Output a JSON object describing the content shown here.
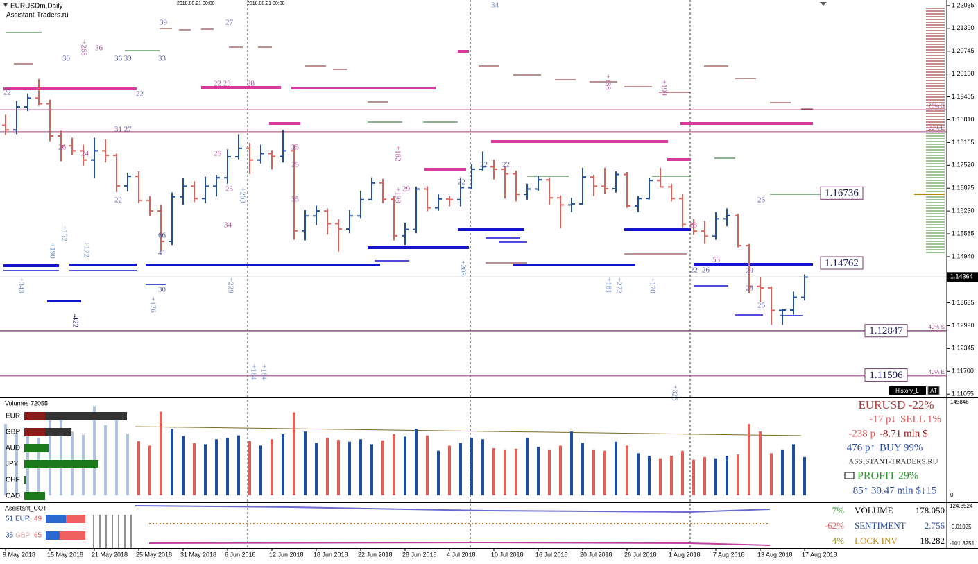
{
  "header": {
    "symbol": "EURUSDm,Daily",
    "site": "Assistant-Traders.ru",
    "timestamps": [
      "2018.08.21 00:00",
      "2018.08.21 00:00"
    ],
    "history": "History_L",
    "badge": "AT"
  },
  "chart_data": [
    {
      "type": "ohlc",
      "ylim": [
        1.1098,
        1.2219
      ],
      "yticks": [
        1.22035,
        {
          "value": 1.2139,
          "label": "1.21390"
        },
        1.20745,
        {
          "value": 1.201,
          "label": "1.20100"
        },
        1.19455,
        {
          "value": 1.1881,
          "label": "1.18810"
        },
        1.18165,
        {
          "value": 1.1752,
          "label": "1.17520"
        },
        1.16875,
        {
          "value": 1.1623,
          "label": "1.16230"
        },
        1.15585,
        {
          "value": 1.1494,
          "label": "1.14940"
        },
        1.13635,
        {
          "value": 1.1299,
          "label": "1.12990"
        },
        1.12345,
        {
          "value": 1.117,
          "label": "1.11700"
        },
        1.11055
      ],
      "current_price": 1.14364,
      "levels": [
        1.16736,
        1.14762,
        1.12847,
        1.11596
      ],
      "zones": [
        {
          "label": "20% S",
          "value": 1.1909
        },
        {
          "label": "20% E",
          "value": 1.1847
        },
        {
          "label": "40% S",
          "value": 1.1284
        },
        {
          "label": "40% E",
          "value": 1.1157
        }
      ],
      "up_color": "#1f4e9c",
      "down_color": "#e0605a",
      "categories": [
        "9 May 2018",
        null,
        null,
        null,
        "15 May 2018",
        null,
        null,
        null,
        "21 May 2018",
        null,
        null,
        null,
        "25 May 2018",
        null,
        null,
        null,
        "31 May 2018",
        null,
        null,
        null,
        "6 Jun 2018",
        null,
        null,
        null,
        "12 Jun 2018",
        null,
        null,
        null,
        "18 Jun 2018",
        null,
        null,
        null,
        "22 Jun 2018",
        null,
        null,
        null,
        "28 Jun 2018",
        null,
        null,
        null,
        "4 Jul 2018",
        null,
        null,
        null,
        "10 Jul 2018",
        null,
        null,
        null,
        "16 Jul 2018",
        null,
        null,
        null,
        "20 Jul 2018",
        null,
        null,
        null,
        "26 Jul 2018",
        null,
        null,
        null,
        "1 Aug 2018",
        null,
        null,
        null,
        "7 Aug 2018",
        null,
        null,
        null,
        "13 Aug 2018",
        null,
        null,
        null,
        "17 Aug 2018"
      ],
      "ohlc": [
        [
          1.1865,
          1.1895,
          1.1838,
          1.1852
        ],
        [
          1.1852,
          1.1934,
          1.184,
          1.1917
        ],
        [
          1.1917,
          1.1955,
          1.1905,
          1.1942
        ],
        [
          1.1942,
          1.1996,
          1.192,
          1.1926
        ],
        [
          1.1926,
          1.1938,
          1.182,
          1.1835
        ],
        [
          1.1835,
          1.185,
          1.1763,
          1.1807
        ],
        [
          1.1807,
          1.183,
          1.178,
          1.1793
        ],
        [
          1.1793,
          1.181,
          1.175,
          1.1767
        ],
        [
          1.1767,
          1.183,
          1.1716,
          1.1793
        ],
        [
          1.1793,
          1.1825,
          1.176,
          1.178
        ],
        [
          1.178,
          1.1785,
          1.1676,
          1.1694
        ],
        [
          1.1694,
          1.1731,
          1.1678,
          1.1721
        ],
        [
          1.1721,
          1.1735,
          1.1645,
          1.1653
        ],
        [
          1.1653,
          1.1665,
          1.1608,
          1.1623
        ],
        [
          1.1623,
          1.164,
          1.151,
          1.1537
        ],
        [
          1.1537,
          1.1675,
          1.1527,
          1.1663
        ],
        [
          1.1663,
          1.1717,
          1.164,
          1.1693
        ],
        [
          1.1693,
          1.1707,
          1.1648,
          1.1658
        ],
        [
          1.1658,
          1.172,
          1.1645,
          1.1693
        ],
        [
          1.1693,
          1.1725,
          1.1664,
          1.1717
        ],
        [
          1.1717,
          1.1797,
          1.17,
          1.1776
        ],
        [
          1.1776,
          1.184,
          1.1769,
          1.18
        ],
        [
          1.18,
          1.1815,
          1.1727,
          1.1767
        ],
        [
          1.1767,
          1.181,
          1.1757,
          1.1785
        ],
        [
          1.1785,
          1.1795,
          1.174,
          1.1777
        ],
        [
          1.1777,
          1.1852,
          1.176,
          1.1793
        ],
        [
          1.1793,
          1.181,
          1.1542,
          1.1567
        ],
        [
          1.1567,
          1.1626,
          1.154,
          1.1609
        ],
        [
          1.1609,
          1.1638,
          1.1583,
          1.1623
        ],
        [
          1.1623,
          1.163,
          1.1556,
          1.1587
        ],
        [
          1.1587,
          1.16,
          1.1508,
          1.1572
        ],
        [
          1.1572,
          1.1626,
          1.156,
          1.1609
        ],
        [
          1.1609,
          1.168,
          1.1603,
          1.1655
        ],
        [
          1.1655,
          1.1718,
          1.1652,
          1.1702
        ],
        [
          1.1702,
          1.1714,
          1.1645,
          1.1656
        ],
        [
          1.1656,
          1.1665,
          1.154,
          1.1553
        ],
        [
          1.1553,
          1.159,
          1.1527,
          1.1571
        ],
        [
          1.1571,
          1.1692,
          1.156,
          1.1685
        ],
        [
          1.1685,
          1.1693,
          1.1622,
          1.1632
        ],
        [
          1.1632,
          1.167,
          1.1624,
          1.1657
        ],
        [
          1.1657,
          1.1665,
          1.1636,
          1.1655
        ],
        [
          1.1655,
          1.1718,
          1.1636,
          1.1689
        ],
        [
          1.1689,
          1.1755,
          1.1685,
          1.1741
        ],
        [
          1.1741,
          1.1791,
          1.1737,
          1.1748
        ],
        [
          1.1748,
          1.1768,
          1.1712,
          1.1741
        ],
        [
          1.1741,
          1.175,
          1.1658,
          1.1728
        ],
        [
          1.1728,
          1.1737,
          1.165,
          1.167
        ],
        [
          1.167,
          1.17,
          1.1655,
          1.1685
        ],
        [
          1.1685,
          1.1722,
          1.168,
          1.1711
        ],
        [
          1.1711,
          1.1718,
          1.164,
          1.166
        ],
        [
          1.166,
          1.1667,
          1.1575,
          1.164
        ],
        [
          1.164,
          1.166,
          1.162,
          1.1643
        ],
        [
          1.1643,
          1.1745,
          1.164,
          1.1719
        ],
        [
          1.1719,
          1.1725,
          1.1665,
          1.1693
        ],
        [
          1.1693,
          1.1745,
          1.167,
          1.1686
        ],
        [
          1.1686,
          1.1735,
          1.1675,
          1.1726
        ],
        [
          1.1726,
          1.1733,
          1.1632,
          1.1637
        ],
        [
          1.1637,
          1.1665,
          1.162,
          1.1658
        ],
        [
          1.1658,
          1.1717,
          1.1656,
          1.1709
        ],
        [
          1.1709,
          1.1745,
          1.169,
          1.1691
        ],
        [
          1.1691,
          1.17,
          1.165,
          1.1658
        ],
        [
          1.1658,
          1.167,
          1.1577,
          1.1585
        ],
        [
          1.1585,
          1.16,
          1.1555,
          1.1566
        ],
        [
          1.1566,
          1.1595,
          1.153,
          1.1552
        ],
        [
          1.1552,
          1.162,
          1.1542,
          1.1601
        ],
        [
          1.1601,
          1.163,
          1.158,
          1.161
        ],
        [
          1.161,
          1.1615,
          1.152,
          1.1525
        ],
        [
          1.1525,
          1.153,
          1.139,
          1.141
        ],
        [
          1.141,
          1.1435,
          1.1365,
          1.1406
        ],
        [
          1.1406,
          1.141,
          1.1301,
          1.1342
        ],
        [
          1.1342,
          1.1346,
          1.1301,
          1.1343
        ],
        [
          1.1343,
          1.1395,
          1.133,
          1.1379
        ],
        [
          1.1379,
          1.1444,
          1.137,
          1.1436
        ]
      ],
      "annotations": [
        "30",
        "+268",
        "36",
        "36 33",
        "33",
        "39",
        "27",
        "34",
        "22",
        "22",
        "28",
        "22 23",
        "31 27",
        "22",
        "26",
        "24",
        "25",
        "26",
        "35",
        "25",
        "35",
        "34",
        "29",
        "22",
        "22",
        "22",
        "26",
        "28",
        "53",
        "29",
        "28",
        "26",
        "22",
        "26",
        "41",
        "66",
        "30",
        "+190",
        "+152",
        "+172",
        "+176",
        "+229",
        "+184",
        "+184",
        "+208",
        "+170",
        "+325",
        "+181",
        "+272",
        "+188",
        "+199",
        "-422",
        "+343",
        "+182",
        "+193",
        "+203"
      ]
    },
    {
      "type": "bar",
      "title": "Volumes 72055",
      "ylim": [
        0,
        145846
      ],
      "yticks": [
        0,
        145846
      ],
      "values": [
        112000,
        98000,
        105000,
        90000,
        130000,
        118000,
        100000,
        95000,
        140000,
        110000,
        128000,
        96000,
        85000,
        78000,
        131000,
        104000,
        93000,
        82000,
        80000,
        88000,
        90000,
        94000,
        85000,
        78000,
        88000,
        96000,
        130000,
        100000,
        82000,
        90000,
        87000,
        84000,
        88000,
        80000,
        86000,
        96000,
        92000,
        104000,
        94000,
        70000,
        78000,
        82000,
        90000,
        88000,
        74000,
        72000,
        73000,
        90000,
        76000,
        72000,
        78000,
        100000,
        82000,
        72000,
        70000,
        84000,
        78000,
        66000,
        62000,
        58000,
        62000,
        70000,
        56000,
        60000,
        58000,
        62000,
        64000,
        112000,
        100000,
        66000,
        72000,
        80000,
        60000
      ],
      "currencies": [
        "EUR",
        "GBP",
        "AUD",
        "JPY",
        "CHF",
        "CAD"
      ],
      "strength": [
        148,
        68,
        35,
        107,
        3,
        30
      ],
      "strength_colors": [
        "#333333",
        "#333333",
        "#1a7a1a",
        "#1a7a1a",
        "#1a7a1a",
        "#1a7a1a"
      ],
      "info": [
        "EURUSD -22%",
        "-17 p↓",
        "SELL 1%",
        "-238 p",
        "-8.71 mln $",
        "476 p↑",
        "BUY 99%",
        "ASSISTANT-TRADERS.RU",
        "PROFIT 29%",
        "85↑ 30.47 mln $↓15"
      ]
    },
    {
      "type": "cot",
      "title": "Assistant_COT",
      "ylim": [
        -101.3251,
        124.3524
      ],
      "yticks": [
        124.3524,
        {
          "value": -0.01025,
          "label": "-0.01025"
        },
        -101.3251
      ],
      "pairs": [
        {
          "name": "EUR",
          "long": 51,
          "short": 49
        },
        {
          "name": "GBP",
          "long": 35,
          "short": 65
        }
      ],
      "stats": [
        [
          "7%",
          "VOLUME",
          "178.050"
        ],
        [
          "-62%",
          "SENTIMENT",
          "2.756"
        ],
        [
          "4%",
          "LOCK INV",
          "18.282"
        ]
      ]
    }
  ]
}
